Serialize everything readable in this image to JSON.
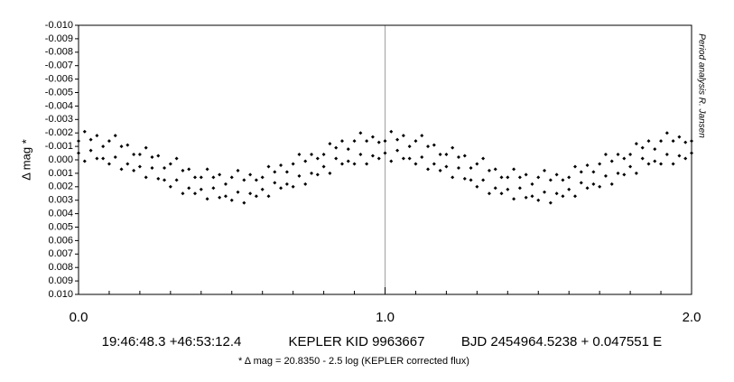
{
  "chart_data": {
    "type": "scatter",
    "y_label": "Δ mag *",
    "side_note": "Period analysis  R. Jansen",
    "info": [
      "19:46:48.3 +46:53:12.4",
      "KEPLER KID 9963667",
      "BJD 2454964.5238 + 0.047551 E"
    ],
    "footnote": "* Δ mag = 20.8350 - 2.5 log (KEPLER corrected flux)",
    "color": "#000000",
    "xlim": [
      0,
      2
    ],
    "xticks": [
      {
        "value": 0,
        "label": "0.0"
      },
      {
        "value": 1,
        "label": "1.0"
      },
      {
        "value": 2,
        "label": "2.0"
      }
    ],
    "xminorticks": [
      0.1,
      0.2,
      0.3,
      0.4,
      0.5,
      0.6,
      0.7,
      0.8,
      0.9,
      1.1,
      1.2,
      1.3,
      1.4,
      1.5,
      1.6,
      1.7,
      1.8,
      1.9
    ],
    "ylim": [
      -0.01,
      0.01
    ],
    "y_inverted": true,
    "yticks": [
      {
        "value": -0.01,
        "label": "-0.010"
      },
      {
        "value": -0.009,
        "label": "-0.009"
      },
      {
        "value": -0.008,
        "label": "-0.008"
      },
      {
        "value": -0.007,
        "label": "-0.007"
      },
      {
        "value": -0.006,
        "label": "-0.006"
      },
      {
        "value": -0.005,
        "label": "-0.005"
      },
      {
        "value": -0.004,
        "label": "-0.004"
      },
      {
        "value": -0.003,
        "label": "-0.003"
      },
      {
        "value": -0.002,
        "label": "-0.002"
      },
      {
        "value": -0.001,
        "label": "-0.001"
      },
      {
        "value": 0,
        "label": "0.000"
      },
      {
        "value": 0.001,
        "label": "0.001"
      },
      {
        "value": 0.002,
        "label": "0.002"
      },
      {
        "value": 0.003,
        "label": "0.003"
      },
      {
        "value": 0.004,
        "label": "0.004"
      },
      {
        "value": 0.005,
        "label": "0.005"
      },
      {
        "value": 0.006,
        "label": "0.006"
      },
      {
        "value": 0.007,
        "label": "0.007"
      },
      {
        "value": 0.008,
        "label": "0.008"
      },
      {
        "value": 0.009,
        "label": "0.009"
      },
      {
        "value": 0.01,
        "label": "0.010"
      }
    ],
    "xgrid": true,
    "x": [
      0,
      0.02,
      0.04,
      0.06,
      0.08,
      0.1,
      0.12,
      0.14,
      0.16,
      0.18,
      0.2,
      0.22,
      0.24,
      0.26,
      0.28,
      0.3,
      0.32,
      0.34,
      0.36,
      0.38,
      0.4,
      0.42,
      0.44,
      0.46,
      0.48,
      0.5,
      0.52,
      0.54,
      0.56,
      0.58,
      0.6,
      0.62,
      0.64,
      0.66,
      0.68,
      0.7,
      0.72,
      0.74,
      0.76,
      0.78,
      0.8,
      0.82,
      0.84,
      0.86,
      0.88,
      0.9,
      0.92,
      0.94,
      0.96,
      0.98,
      1,
      1.02,
      1.04,
      1.06,
      1.08,
      1.1,
      1.12,
      1.14,
      1.16,
      1.18,
      1.2,
      1.22,
      1.24,
      1.26,
      1.28,
      1.3,
      1.32,
      1.34,
      1.36,
      1.38,
      1.4,
      1.42,
      1.44,
      1.46,
      1.48,
      1.5,
      1.52,
      1.54,
      1.56,
      1.58,
      1.6,
      1.62,
      1.64,
      1.66,
      1.68,
      1.7,
      1.72,
      1.74,
      1.76,
      1.78,
      1.8,
      1.82,
      1.84,
      1.86,
      1.88,
      1.9,
      1.92,
      1.94,
      1.96,
      1.98,
      2,
      0,
      0.02,
      0.04,
      0.06,
      0.08,
      0.1,
      0.12,
      0.14,
      0.16,
      0.18,
      0.2,
      0.22,
      0.24,
      0.26,
      0.28,
      0.3,
      0.32,
      0.34,
      0.36,
      0.38,
      0.4,
      0.42,
      0.44,
      0.46,
      0.48,
      0.5,
      0.52,
      0.54,
      0.56,
      0.58,
      0.6,
      0.62,
      0.64,
      0.66,
      0.68,
      0.7,
      0.72,
      0.74,
      0.76,
      0.78,
      0.8,
      0.82,
      0.84,
      0.86,
      0.88,
      0.9,
      0.92,
      0.94,
      0.96,
      0.98,
      1,
      1.02,
      1.04,
      1.06,
      1.08,
      1.1,
      1.12,
      1.14,
      1.16,
      1.18,
      1.2,
      1.22,
      1.24,
      1.26,
      1.28,
      1.3,
      1.32,
      1.34,
      1.36,
      1.38,
      1.4,
      1.42,
      1.44,
      1.46,
      1.48,
      1.5,
      1.52,
      1.54,
      1.56,
      1.58,
      1.6,
      1.62,
      1.64,
      1.66,
      1.68,
      1.7,
      1.72,
      1.74,
      1.76,
      1.78,
      1.8,
      1.82,
      1.84,
      1.86,
      1.88,
      1.9,
      1.92,
      1.94,
      1.96,
      1.98,
      2
    ],
    "y": [
      -0.0014,
      -0.0021,
      -0.0015,
      -0.0018,
      -0.001,
      -0.0014,
      -0.0018,
      -0.001,
      -0.0011,
      -0.0004,
      -0.0004,
      -0.0009,
      -0.0002,
      -0.0003,
      0.0006,
      0.0003,
      -0.0001,
      0.0008,
      0.0007,
      0.0013,
      0.0013,
      0.0007,
      0.0013,
      0.0011,
      0.0018,
      0.0013,
      0.0008,
      0.0015,
      0.0011,
      0.0015,
      0.0013,
      0.0005,
      0.0009,
      0.0004,
      0.0009,
      0.0003,
      -0.0004,
      0.0001,
      -0.0004,
      -0.0001,
      -0.0004,
      -0.0012,
      -0.0009,
      -0.0014,
      -0.0008,
      -0.0014,
      -0.002,
      -0.0014,
      -0.0017,
      -0.0013,
      -0.0014,
      -0.0021,
      -0.0015,
      -0.0018,
      -0.001,
      -0.0014,
      -0.0018,
      -0.001,
      -0.0011,
      -0.0004,
      -0.0004,
      -0.0009,
      -0.0002,
      -0.0003,
      0.0006,
      0.0003,
      -0.0001,
      0.0008,
      0.0007,
      0.0013,
      0.0013,
      0.0007,
      0.0013,
      0.0011,
      0.0018,
      0.0013,
      0.0008,
      0.0015,
      0.0011,
      0.0015,
      0.0013,
      0.0005,
      0.0009,
      0.0004,
      0.0009,
      0.0003,
      -0.0004,
      0.0001,
      -0.0004,
      -0.0001,
      -0.0004,
      -0.0012,
      -0.0009,
      -0.0014,
      -0.0008,
      -0.0014,
      -0.002,
      -0.0014,
      -0.0017,
      -0.0013,
      -0.0014,
      -0.0005,
      0.0001,
      -0.0007,
      -0.0001,
      -0.0001,
      0.0003,
      -0.0002,
      0.0007,
      0.0003,
      0.0008,
      0.0005,
      0.0013,
      0.0006,
      0.0014,
      0.0015,
      0.002,
      0.0015,
      0.0025,
      0.0021,
      0.0025,
      0.0022,
      0.0029,
      0.0021,
      0.0028,
      0.0027,
      0.003,
      0.0024,
      0.0032,
      0.0025,
      0.0027,
      0.0022,
      0.0027,
      0.0017,
      0.0021,
      0.0018,
      0.002,
      0.0012,
      0.0018,
      0.001,
      0.0011,
      0.0005,
      0.001,
      -0.0001,
      0.0003,
      0.0001,
      0.0003,
      -0.0004,
      0.0003,
      -0.0003,
      -0.0001,
      -0.0005,
      0.0001,
      -0.0007,
      -0.0001,
      -0.0001,
      0.0003,
      -0.0002,
      0.0007,
      0.0003,
      0.0008,
      0.0005,
      0.0013,
      0.0006,
      0.0014,
      0.0015,
      0.002,
      0.0015,
      0.0025,
      0.0021,
      0.0025,
      0.0022,
      0.0029,
      0.0021,
      0.0028,
      0.0027,
      0.003,
      0.0024,
      0.0032,
      0.0025,
      0.0027,
      0.0022,
      0.0027,
      0.0017,
      0.0021,
      0.0018,
      0.002,
      0.0012,
      0.0018,
      0.001,
      0.0011,
      0.0005,
      0.001,
      -0.0001,
      0.0003,
      0.0001,
      0.0003,
      -0.0004,
      0.0003,
      -0.0003,
      -0.0001,
      -0.0005
    ]
  }
}
